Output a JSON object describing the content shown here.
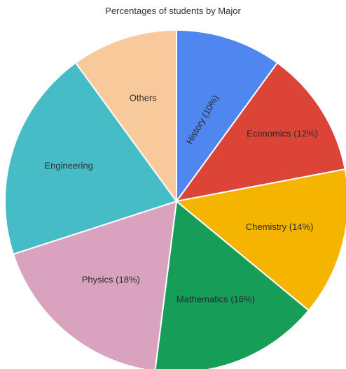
{
  "chart_data": {
    "type": "pie",
    "title": "Percentages of students by Major",
    "start_angle_deg": 0,
    "direction": "clockwise",
    "slices": [
      {
        "label": "History (10%)",
        "category": "History",
        "value": 10,
        "color": "#4f86f0"
      },
      {
        "label": "Economics (12%)",
        "category": "Economics",
        "value": 12,
        "color": "#dc4437"
      },
      {
        "label": "Chemistry (14%)",
        "category": "Chemistry",
        "value": 14,
        "color": "#f4b400"
      },
      {
        "label": "Mathematics (16%)",
        "category": "Mathematics",
        "value": 16,
        "color": "#169d58"
      },
      {
        "label": "Physics (18%)",
        "category": "Physics",
        "value": 18,
        "color": "#d9a3c0"
      },
      {
        "label": "Engineering",
        "category": "Engineering",
        "value": 20,
        "color": "#46bdc6"
      },
      {
        "label": "Others",
        "category": "Others",
        "value": 10,
        "color": "#f7c99b"
      }
    ]
  }
}
